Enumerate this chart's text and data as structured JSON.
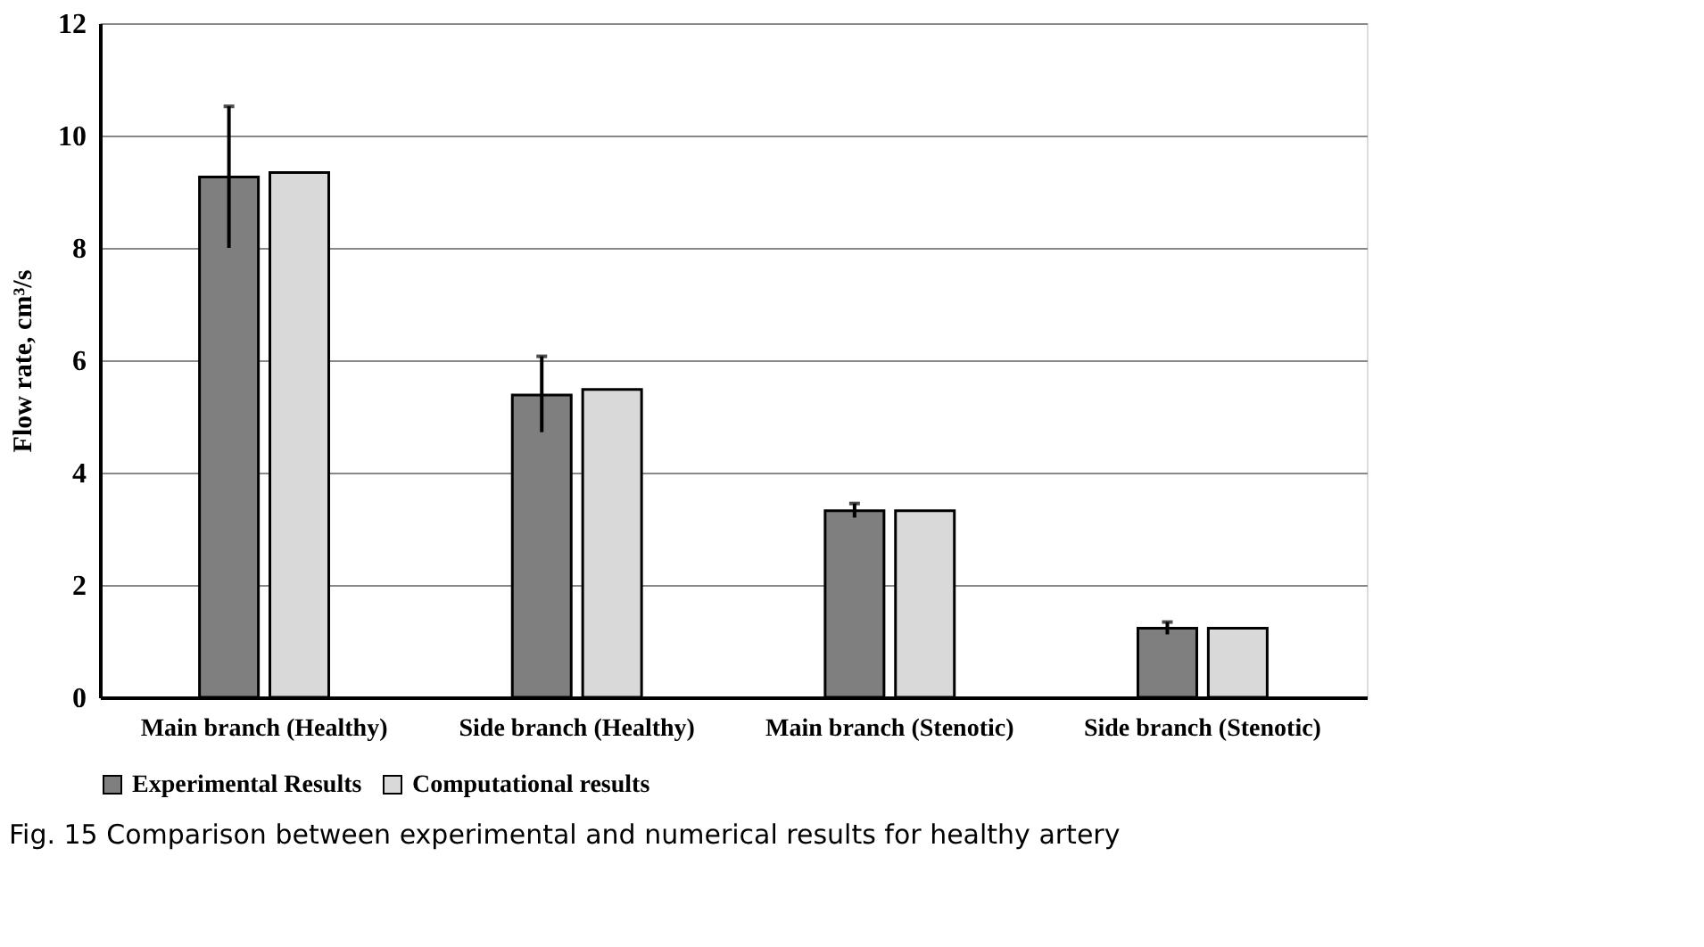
{
  "chart_data": {
    "type": "bar",
    "categories": [
      "Main branch (Healthy)",
      "Side branch (Healthy)",
      "Main branch (Stenotic)",
      "Side branch (Stenotic)"
    ],
    "ylabel": "Flow rate, cm³/s",
    "ylim": [
      0,
      12
    ],
    "yticks": [
      0,
      2,
      4,
      6,
      8,
      10,
      12
    ],
    "grid": "y",
    "legend": "bottom",
    "series": [
      {
        "name": "Experimental Results",
        "color": "#7f7f7f",
        "values": [
          9.26,
          5.38,
          3.32,
          1.23
        ],
        "errors": [
          [
            8.0,
            10.52
          ],
          [
            4.72,
            6.07
          ],
          [
            3.2,
            3.45
          ],
          [
            1.12,
            1.34
          ]
        ]
      },
      {
        "name": "Computational results",
        "color": "#d9d9d9",
        "values": [
          9.34,
          5.48,
          3.32,
          1.23
        ]
      }
    ],
    "annotations": [
      "Fig. 15  Comparison between experimental and numerical results for healthy artery"
    ]
  }
}
